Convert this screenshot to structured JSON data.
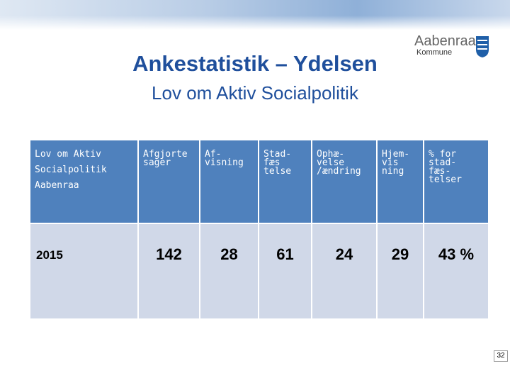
{
  "header": {
    "title": "Ankestatistik – Ydelsen",
    "subtitle": "Lov om Aktiv Socialpolitik"
  },
  "logo": {
    "name": "Aabenraa",
    "sub": "Kommune"
  },
  "table": {
    "header": [
      [
        "Lov om Aktiv",
        "Socialpolitik",
        "Aabenraa"
      ],
      [
        "Afgjorte",
        "sager"
      ],
      [
        "Af-",
        "visning"
      ],
      [
        "Stad-",
        "fæs",
        "telse"
      ],
      [
        "Ophæ-",
        "velse",
        "/ændring"
      ],
      [
        "Hjem-",
        "vis",
        "ning"
      ],
      [
        "% for",
        "stad-",
        "fæs-",
        "telser"
      ]
    ],
    "rows": [
      [
        "2015",
        "142",
        "28",
        "61",
        "24",
        "29",
        "43 %"
      ]
    ]
  },
  "page_number": "32"
}
